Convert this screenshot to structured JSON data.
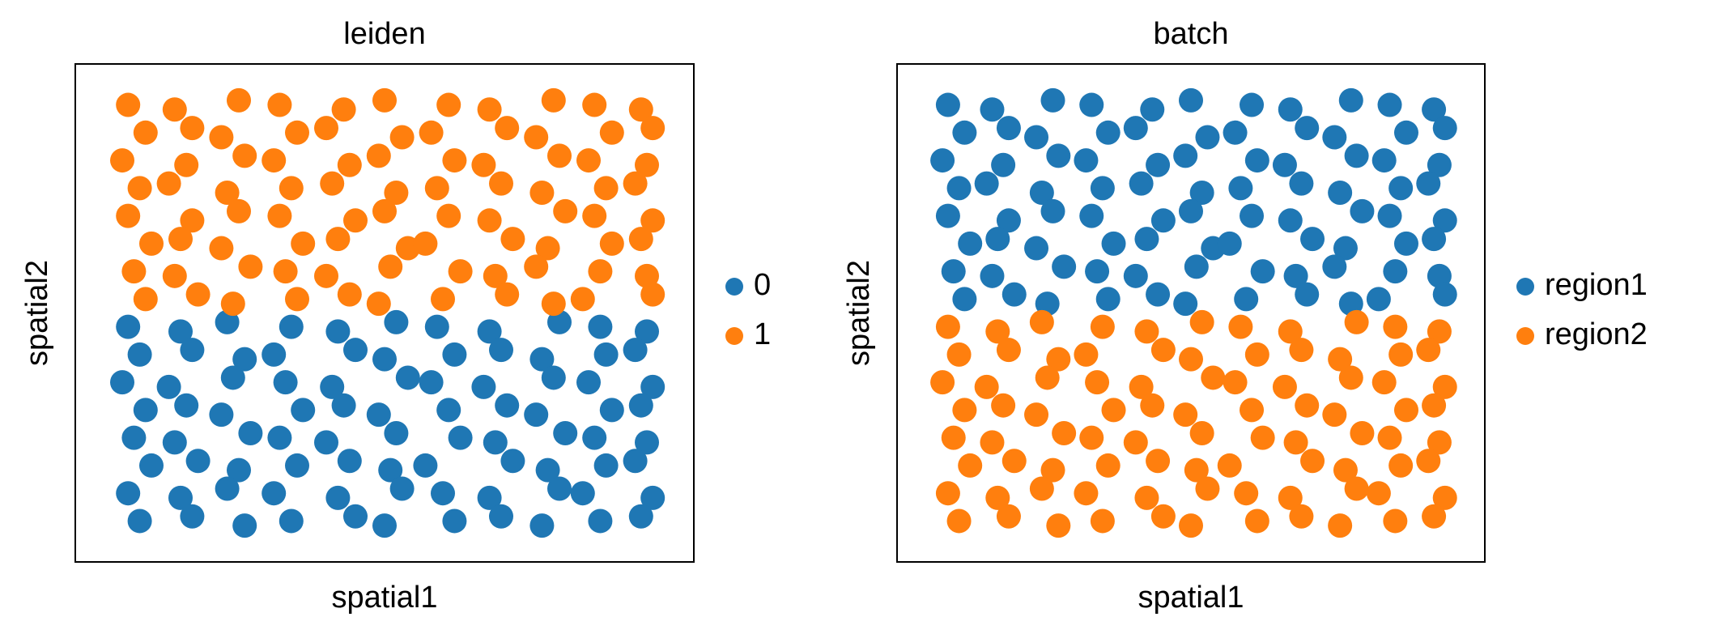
{
  "chart_data": [
    {
      "type": "scatter",
      "title": "leiden",
      "x_label": "spatial1",
      "y_label": "spatial2",
      "xlim": [
        0,
        100
      ],
      "ylim": [
        0,
        100
      ],
      "legend": "right",
      "series": [
        {
          "name": "0",
          "color": "#1f77b4",
          "x": [
            6,
            15,
            23,
            34,
            42,
            52,
            59,
            68,
            80,
            87,
            95,
            8,
            17,
            26,
            31,
            45,
            50,
            62,
            70,
            77,
            88,
            93,
            5,
            13,
            24,
            33,
            41,
            54,
            58,
            67,
            79,
            85,
            96,
            9,
            16,
            22,
            36,
            43,
            49,
            61,
            71,
            76,
            89,
            94,
            7,
            14,
            27,
            32,
            40,
            52,
            63,
            69,
            81,
            86,
            95,
            10,
            18,
            25,
            35,
            44,
            51,
            57,
            72,
            78,
            88,
            93,
            6,
            15,
            23,
            31,
            42,
            53,
            60,
            68,
            80,
            84,
            96,
            8,
            17,
            26,
            34,
            45,
            50,
            62,
            70,
            77,
            87,
            94
          ],
          "values": [
            47,
            46,
            48,
            47,
            46,
            48,
            47,
            46,
            48,
            47,
            46,
            41,
            42,
            40,
            41,
            42,
            40,
            41,
            42,
            40,
            41,
            42,
            35,
            34,
            36,
            35,
            34,
            36,
            35,
            34,
            36,
            35,
            34,
            29,
            30,
            28,
            29,
            30,
            28,
            29,
            30,
            28,
            29,
            30,
            23,
            22,
            24,
            23,
            22,
            24,
            23,
            22,
            24,
            23,
            22,
            17,
            18,
            16,
            17,
            18,
            16,
            17,
            18,
            16,
            17,
            18,
            11,
            10,
            12,
            11,
            10,
            12,
            11,
            10,
            12,
            11,
            10,
            5,
            6,
            4,
            5,
            6,
            4,
            5,
            6,
            4,
            5,
            6
          ]
        },
        {
          "name": "1",
          "color": "#ff7f0e",
          "x": [
            6,
            14,
            25,
            32,
            43,
            50,
            61,
            68,
            79,
            86,
            94,
            9,
            17,
            22,
            35,
            40,
            53,
            58,
            71,
            76,
            89,
            96,
            5,
            16,
            26,
            31,
            44,
            49,
            62,
            67,
            80,
            85,
            95,
            8,
            13,
            23,
            34,
            41,
            52,
            59,
            70,
            77,
            88,
            93,
            6,
            17,
            25,
            32,
            45,
            50,
            61,
            68,
            81,
            86,
            96,
            10,
            15,
            22,
            36,
            42,
            54,
            57,
            72,
            78,
            89,
            94,
            7,
            14,
            27,
            33,
            40,
            51,
            63,
            69,
            76,
            87,
            95,
            9,
            18,
            24,
            35,
            44,
            49,
            60,
            71,
            79,
            84,
            96
          ],
          "values": [
            95,
            94,
            96,
            95,
            94,
            96,
            95,
            94,
            96,
            95,
            94,
            89,
            90,
            88,
            89,
            90,
            88,
            89,
            90,
            88,
            89,
            90,
            83,
            82,
            84,
            83,
            82,
            84,
            83,
            82,
            84,
            83,
            82,
            77,
            78,
            76,
            77,
            78,
            76,
            77,
            78,
            76,
            77,
            78,
            71,
            70,
            72,
            71,
            70,
            72,
            71,
            70,
            72,
            71,
            70,
            65,
            66,
            64,
            65,
            66,
            64,
            65,
            66,
            64,
            65,
            66,
            59,
            58,
            60,
            59,
            58,
            60,
            59,
            58,
            60,
            59,
            58,
            53,
            54,
            52,
            53,
            54,
            52,
            53,
            54,
            52,
            53,
            54
          ]
        }
      ]
    },
    {
      "type": "scatter",
      "title": "batch",
      "x_label": "spatial1",
      "y_label": "spatial2",
      "xlim": [
        0,
        100
      ],
      "ylim": [
        0,
        100
      ],
      "legend": "right",
      "series": [
        {
          "name": "region1",
          "color": "#1f77b4",
          "x": [
            6,
            14,
            25,
            32,
            43,
            50,
            61,
            68,
            79,
            86,
            94,
            9,
            17,
            22,
            35,
            40,
            53,
            58,
            71,
            76,
            89,
            96,
            5,
            16,
            26,
            31,
            44,
            49,
            62,
            67,
            80,
            85,
            95,
            8,
            13,
            23,
            34,
            41,
            52,
            59,
            70,
            77,
            88,
            93,
            6,
            17,
            25,
            32,
            45,
            50,
            61,
            68,
            81,
            86,
            96,
            10,
            15,
            22,
            36,
            42,
            54,
            57,
            72,
            78,
            89,
            94,
            7,
            14,
            27,
            33,
            40,
            51,
            63,
            69,
            76,
            87,
            95,
            9,
            18,
            24,
            35,
            44,
            49,
            60,
            71,
            79,
            84,
            96
          ],
          "values": [
            95,
            94,
            96,
            95,
            94,
            96,
            95,
            94,
            96,
            95,
            94,
            89,
            90,
            88,
            89,
            90,
            88,
            89,
            90,
            88,
            89,
            90,
            83,
            82,
            84,
            83,
            82,
            84,
            83,
            82,
            84,
            83,
            82,
            77,
            78,
            76,
            77,
            78,
            76,
            77,
            78,
            76,
            77,
            78,
            71,
            70,
            72,
            71,
            70,
            72,
            71,
            70,
            72,
            71,
            70,
            65,
            66,
            64,
            65,
            66,
            64,
            65,
            66,
            64,
            65,
            66,
            59,
            58,
            60,
            59,
            58,
            60,
            59,
            58,
            60,
            59,
            58,
            53,
            54,
            52,
            53,
            54,
            52,
            53,
            54,
            52,
            53,
            54
          ]
        },
        {
          "name": "region2",
          "color": "#ff7f0e",
          "x": [
            6,
            15,
            23,
            34,
            42,
            52,
            59,
            68,
            80,
            87,
            95,
            8,
            17,
            26,
            31,
            45,
            50,
            62,
            70,
            77,
            88,
            93,
            5,
            13,
            24,
            33,
            41,
            54,
            58,
            67,
            79,
            85,
            96,
            9,
            16,
            22,
            36,
            43,
            49,
            61,
            71,
            76,
            89,
            94,
            7,
            14,
            27,
            32,
            40,
            52,
            63,
            69,
            81,
            86,
            95,
            10,
            18,
            25,
            35,
            44,
            51,
            57,
            72,
            78,
            88,
            93,
            6,
            15,
            23,
            31,
            42,
            53,
            60,
            68,
            80,
            84,
            96,
            8,
            17,
            26,
            34,
            45,
            50,
            62,
            70,
            77,
            87,
            94
          ],
          "values": [
            47,
            46,
            48,
            47,
            46,
            48,
            47,
            46,
            48,
            47,
            46,
            41,
            42,
            40,
            41,
            42,
            40,
            41,
            42,
            40,
            41,
            42,
            35,
            34,
            36,
            35,
            34,
            36,
            35,
            34,
            36,
            35,
            34,
            29,
            30,
            28,
            29,
            30,
            28,
            29,
            30,
            28,
            29,
            30,
            23,
            22,
            24,
            23,
            22,
            24,
            23,
            22,
            24,
            23,
            22,
            17,
            18,
            16,
            17,
            18,
            16,
            17,
            18,
            16,
            17,
            18,
            11,
            10,
            12,
            11,
            10,
            12,
            11,
            10,
            12,
            11,
            10,
            5,
            6,
            4,
            5,
            6,
            4,
            5,
            6,
            4,
            5,
            6
          ]
        }
      ]
    }
  ]
}
